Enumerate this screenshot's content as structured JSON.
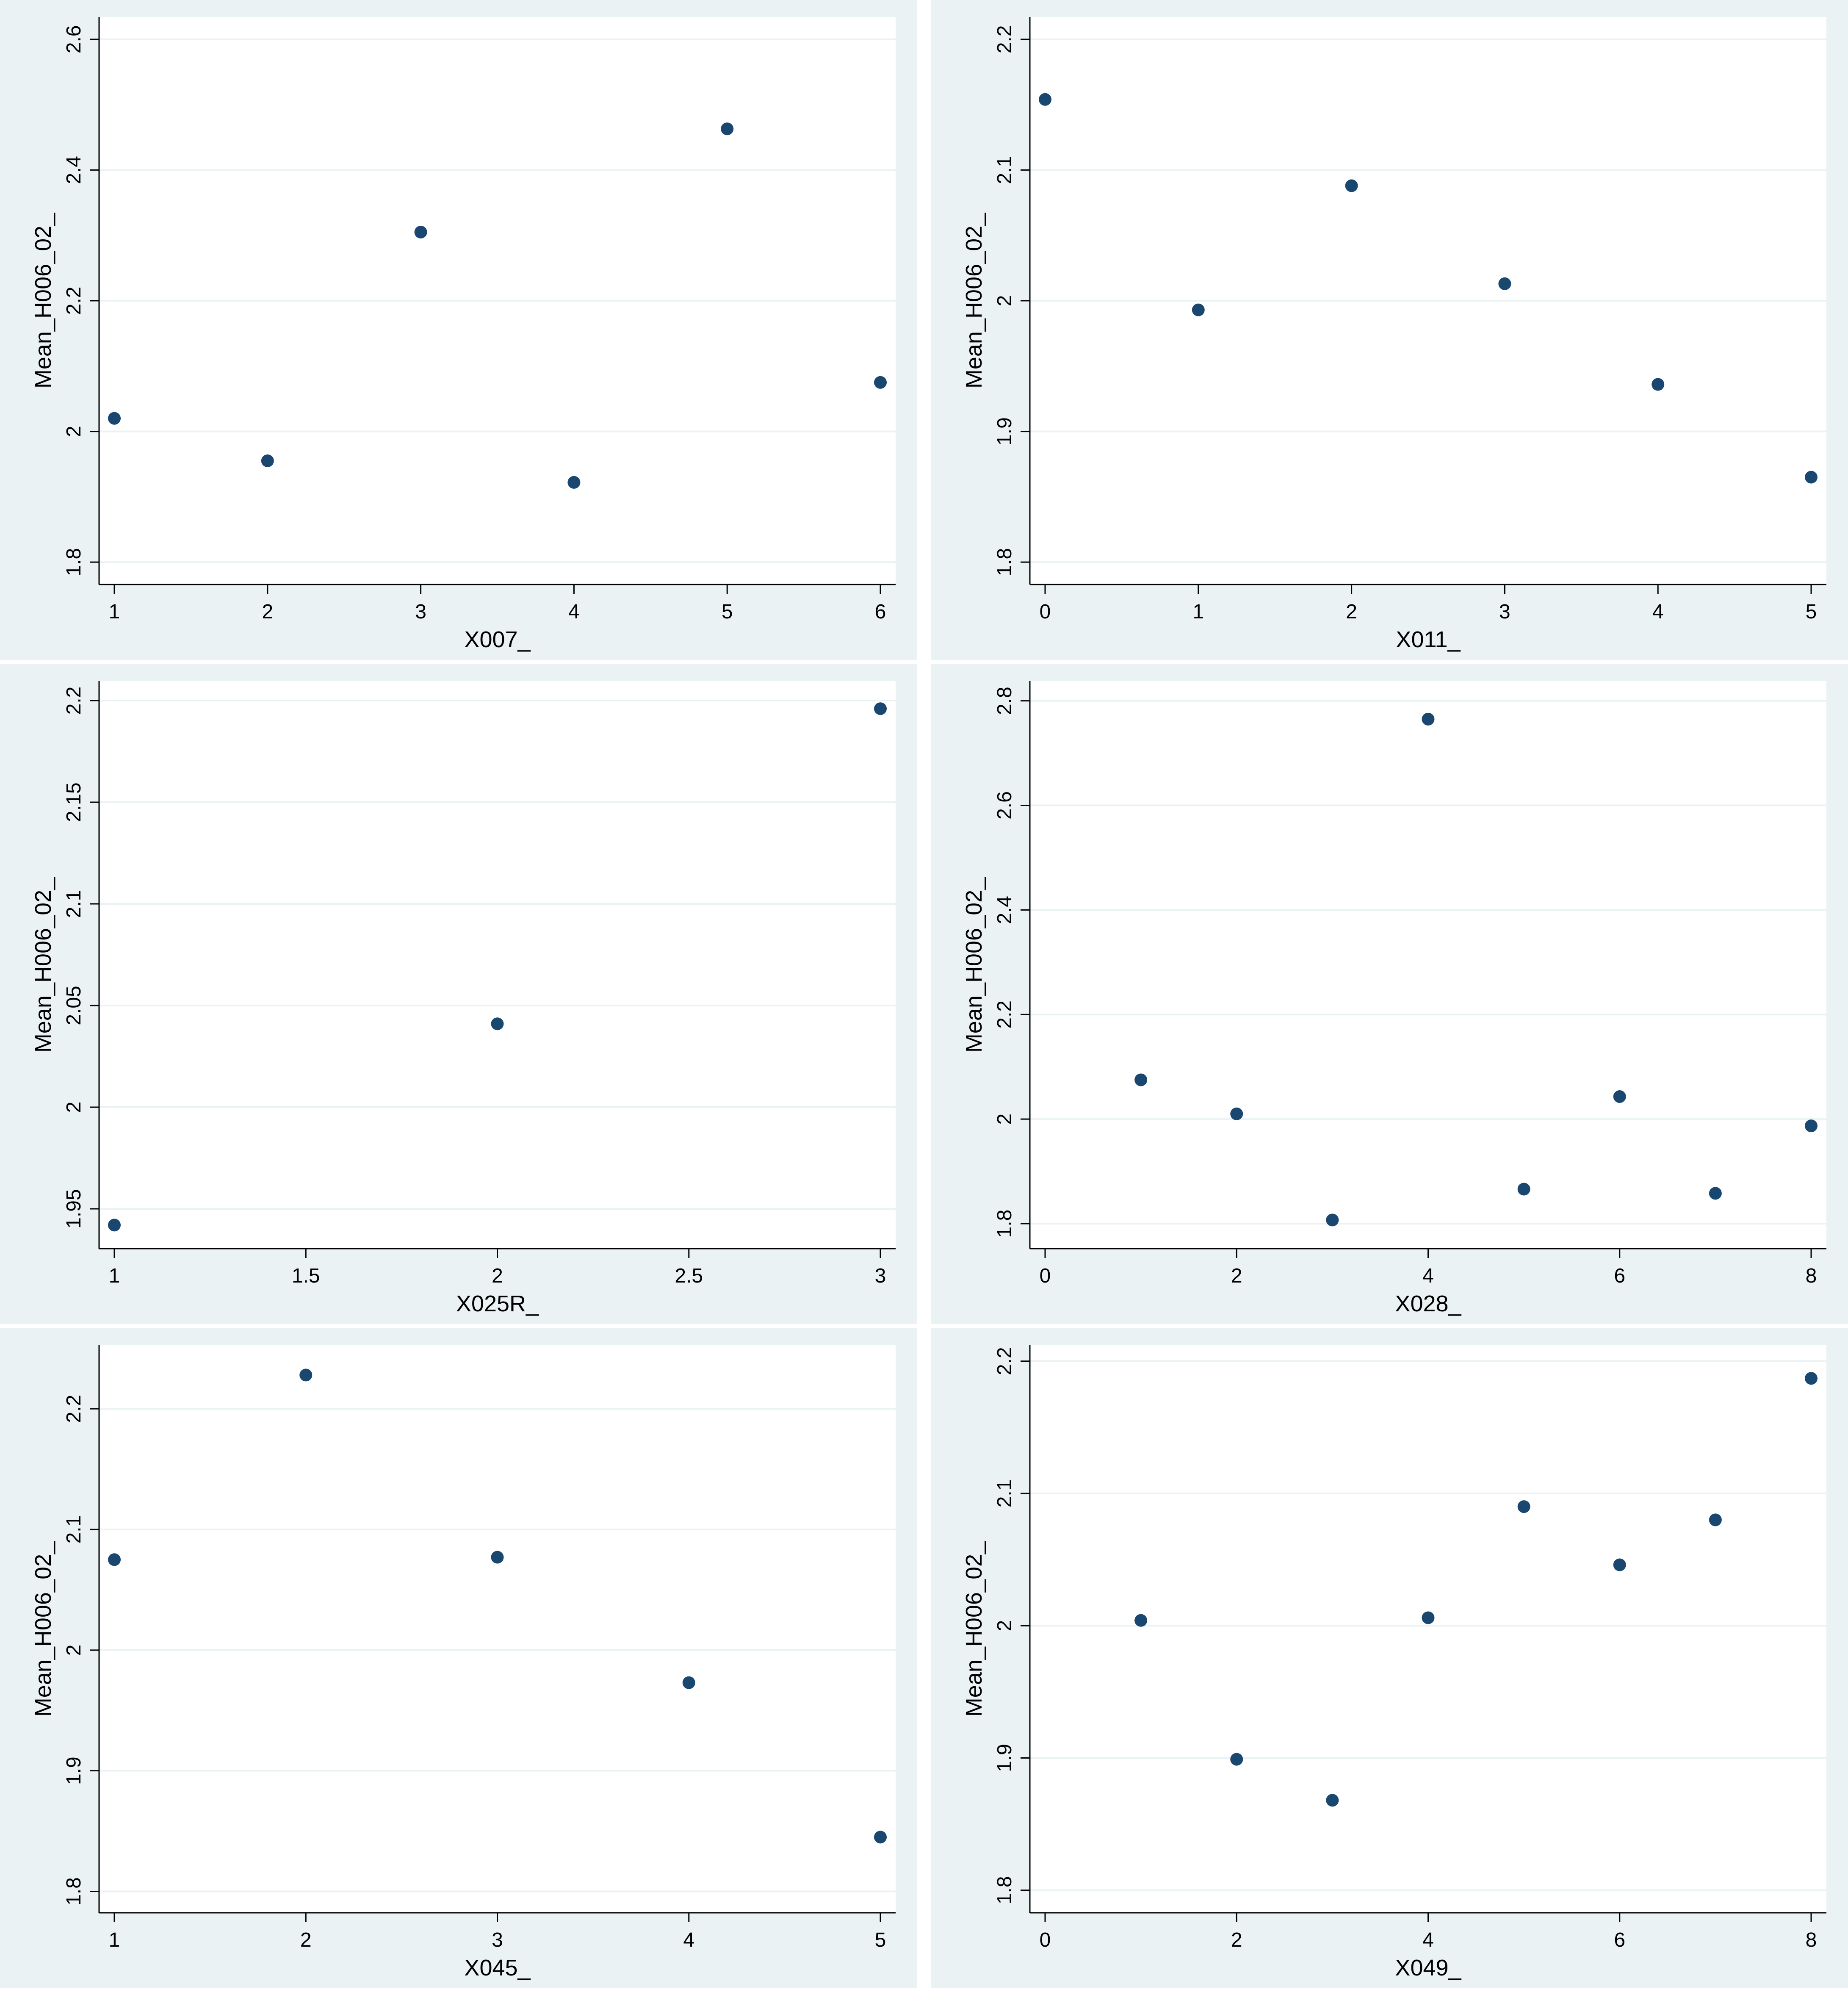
{
  "figure": {
    "background": "#eaf2f3",
    "plot_background": "#ffffff",
    "marker_color": "#1a476f",
    "grid_color": "#eaf2f3"
  },
  "chart_data": [
    {
      "type": "scatter",
      "xlabel": "X007_",
      "ylabel": "Mean_H006_02_",
      "xlim": [
        1,
        6
      ],
      "ylim": [
        1.78,
        2.62
      ],
      "xticks": [
        1,
        2,
        3,
        4,
        5,
        6
      ],
      "yticks": [
        1.8,
        2,
        2.2,
        2.4,
        2.6
      ],
      "xtick_labels": [
        "1",
        "2",
        "3",
        "4",
        "5",
        "6"
      ],
      "ytick_labels": [
        "1.8",
        "2",
        "2.2",
        "2.4",
        "2.6"
      ],
      "grid": true,
      "points": [
        {
          "x": 1,
          "y": 2.02
        },
        {
          "x": 2,
          "y": 1.955
        },
        {
          "x": 3,
          "y": 2.305
        },
        {
          "x": 4,
          "y": 1.922
        },
        {
          "x": 5,
          "y": 2.463
        },
        {
          "x": 6,
          "y": 2.075
        }
      ]
    },
    {
      "type": "scatter",
      "xlabel": "X011_",
      "ylabel": "Mean_H006_02_",
      "xlim": [
        0,
        5
      ],
      "ylim": [
        1.79,
        2.21
      ],
      "xticks": [
        0,
        1,
        2,
        3,
        4,
        5
      ],
      "yticks": [
        1.8,
        1.9,
        2,
        2.1,
        2.2
      ],
      "xtick_labels": [
        "0",
        "1",
        "2",
        "3",
        "4",
        "5"
      ],
      "ytick_labels": [
        "1.8",
        "1.9",
        "2",
        "2.1",
        "2.2"
      ],
      "grid": true,
      "points": [
        {
          "x": 0,
          "y": 2.154
        },
        {
          "x": 1,
          "y": 1.993
        },
        {
          "x": 2,
          "y": 2.088
        },
        {
          "x": 3,
          "y": 2.013
        },
        {
          "x": 4,
          "y": 1.936
        },
        {
          "x": 5,
          "y": 1.865
        }
      ]
    },
    {
      "type": "scatter",
      "xlabel": "X025R_",
      "ylabel": "Mean_H006_02_",
      "xlim": [
        1,
        3
      ],
      "ylim": [
        1.935,
        2.205
      ],
      "xticks": [
        1,
        1.5,
        2,
        2.5,
        3
      ],
      "yticks": [
        1.95,
        2,
        2.05,
        2.1,
        2.15,
        2.2
      ],
      "xtick_labels": [
        "1",
        "1.5",
        "2",
        "2.5",
        "3"
      ],
      "ytick_labels": [
        "1.95",
        "2",
        "2.05",
        "2.1",
        "2.15",
        "2.2"
      ],
      "grid": true,
      "points": [
        {
          "x": 1,
          "y": 1.942
        },
        {
          "x": 2,
          "y": 2.041
        },
        {
          "x": 3,
          "y": 2.196
        }
      ]
    },
    {
      "type": "scatter",
      "xlabel": "X028_",
      "ylabel": "Mean_H006_02_",
      "xlim": [
        0,
        8
      ],
      "ylim": [
        1.77,
        2.82
      ],
      "xticks": [
        0,
        2,
        4,
        6,
        8
      ],
      "yticks": [
        1.8,
        2,
        2.2,
        2.4,
        2.6,
        2.8
      ],
      "xtick_labels": [
        "0",
        "2",
        "4",
        "6",
        "8"
      ],
      "ytick_labels": [
        "1.8",
        "2",
        "2.2",
        "2.4",
        "2.6",
        "2.8"
      ],
      "grid": true,
      "points": [
        {
          "x": 1,
          "y": 2.075
        },
        {
          "x": 2,
          "y": 2.01
        },
        {
          "x": 3,
          "y": 1.807
        },
        {
          "x": 4,
          "y": 2.765
        },
        {
          "x": 5,
          "y": 1.866
        },
        {
          "x": 6,
          "y": 2.043
        },
        {
          "x": 7,
          "y": 1.858
        },
        {
          "x": 8,
          "y": 1.987
        }
      ]
    },
    {
      "type": "scatter",
      "xlabel": "X045_",
      "ylabel": "Mean_H006_02_",
      "xlim": [
        1,
        5
      ],
      "ylim": [
        1.79,
        2.245
      ],
      "xticks": [
        1,
        2,
        3,
        4,
        5
      ],
      "yticks": [
        1.8,
        1.9,
        2,
        2.1,
        2.2
      ],
      "xtick_labels": [
        "1",
        "2",
        "3",
        "4",
        "5"
      ],
      "ytick_labels": [
        "1.8",
        "1.9",
        "2",
        "2.1",
        "2.2"
      ],
      "grid": true,
      "points": [
        {
          "x": 1,
          "y": 2.075
        },
        {
          "x": 2,
          "y": 2.228
        },
        {
          "x": 3,
          "y": 2.077
        },
        {
          "x": 4,
          "y": 1.973
        },
        {
          "x": 5,
          "y": 1.845
        }
      ]
    },
    {
      "type": "scatter",
      "xlabel": "X049_",
      "ylabel": "Mean_H006_02_",
      "xlim": [
        0,
        8
      ],
      "ylim": [
        1.79,
        2.205
      ],
      "xticks": [
        0,
        2,
        4,
        6,
        8
      ],
      "yticks": [
        1.8,
        1.9,
        2,
        2.1,
        2.2
      ],
      "xtick_labels": [
        "0",
        "2",
        "4",
        "6",
        "8"
      ],
      "ytick_labels": [
        "1.8",
        "1.9",
        "2",
        "2.1",
        "2.2"
      ],
      "grid": true,
      "points": [
        {
          "x": 1,
          "y": 2.004
        },
        {
          "x": 2,
          "y": 1.899
        },
        {
          "x": 3,
          "y": 1.868
        },
        {
          "x": 4,
          "y": 2.006
        },
        {
          "x": 5,
          "y": 2.09
        },
        {
          "x": 6,
          "y": 2.046
        },
        {
          "x": 7,
          "y": 2.08
        },
        {
          "x": 8,
          "y": 2.187
        }
      ]
    }
  ]
}
